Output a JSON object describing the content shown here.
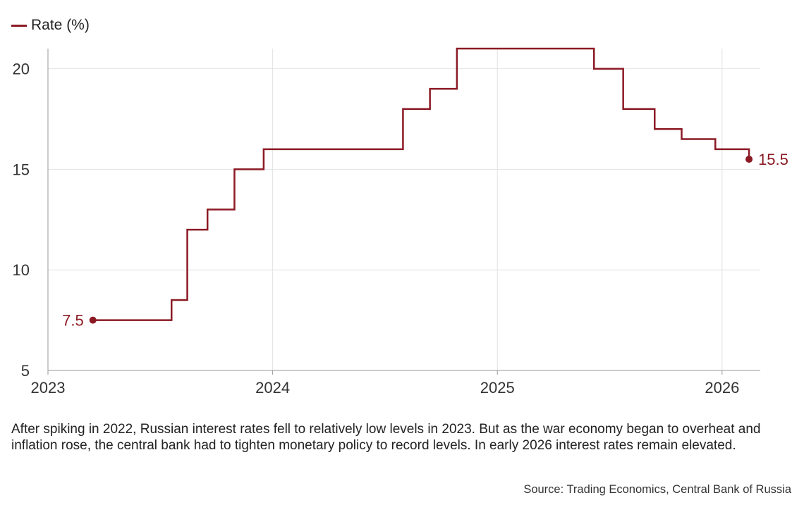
{
  "chart_data": {
    "type": "line",
    "step": true,
    "legend": "top-left",
    "grid": true,
    "colors": {
      "line": "#8b1a24",
      "grid": "#e2e2e2",
      "axis": "#999999"
    },
    "ylim": [
      5,
      21
    ],
    "xlim": [
      2023.0,
      2026.17
    ],
    "yticks": [
      5,
      10,
      15,
      20
    ],
    "xticks": [
      2023,
      2024,
      2025,
      2026
    ],
    "ytick_labels": [
      "5",
      "10",
      "15",
      "20"
    ],
    "xtick_labels": [
      "2023",
      "2024",
      "2025",
      "2026"
    ],
    "series": [
      {
        "name": "Rate (%)",
        "x": [
          2023.2,
          2023.55,
          2023.62,
          2023.71,
          2023.83,
          2023.96,
          2024.58,
          2024.7,
          2024.82,
          2025.43,
          2025.56,
          2025.7,
          2025.82,
          2025.97,
          2026.12
        ],
        "y": [
          7.5,
          8.5,
          12,
          13,
          15,
          16,
          18,
          19,
          21,
          20,
          18,
          17,
          16.5,
          16,
          15.5
        ]
      }
    ],
    "annotations": [
      {
        "text": "7.5",
        "x": 2023.2,
        "y": 7.5
      },
      {
        "text": "15.5",
        "x": 2026.12,
        "y": 15.5
      }
    ]
  },
  "caption": "After spiking in 2022, Russian interest rates fell to relatively low levels in 2023. But as the war economy began to overheat and inflation rose, the central bank had to tighten monetary policy to record levels. In early 2026 interest rates remain elevated.",
  "source": "Source: Trading Economics, Central Bank of Russia"
}
